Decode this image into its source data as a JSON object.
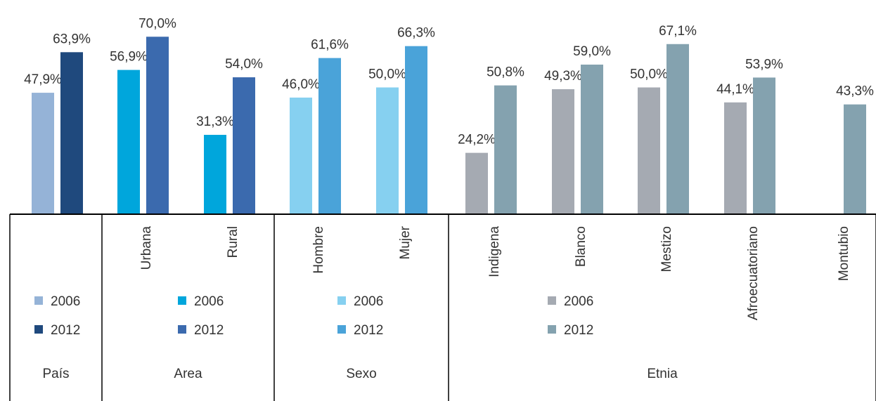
{
  "chart_data": {
    "type": "bar",
    "ylim": [
      0,
      100
    ],
    "grid": false,
    "groups": [
      {
        "name": "País",
        "colors": {
          "2006": "#95b3d7",
          "2012": "#1f497d"
        },
        "legend": [
          "2006",
          "2012"
        ],
        "categories": [
          {
            "label": "",
            "values": {
              "2006": 47.9,
              "2012": 63.9
            },
            "value_labels": {
              "2006": "47,9%",
              "2012": "63,9%"
            }
          }
        ]
      },
      {
        "name": "Area",
        "colors": {
          "2006": "#00a6dc",
          "2012": "#3b6aae"
        },
        "legend": [
          "2006",
          "2012"
        ],
        "categories": [
          {
            "label": "Urbana",
            "values": {
              "2006": 56.9,
              "2012": 70.0
            },
            "value_labels": {
              "2006": "56,9%",
              "2012": "70,0%"
            }
          },
          {
            "label": "Rural",
            "values": {
              "2006": 31.3,
              "2012": 54.0
            },
            "value_labels": {
              "2006": "31,3%",
              "2012": "54,0%"
            }
          }
        ]
      },
      {
        "name": "Sexo",
        "colors": {
          "2006": "#86d0f0",
          "2012": "#4aa3d9"
        },
        "legend": [
          "2006",
          "2012"
        ],
        "categories": [
          {
            "label": "Hombre",
            "values": {
              "2006": 46.0,
              "2012": 61.6
            },
            "value_labels": {
              "2006": "46,0%",
              "2012": "61,6%"
            }
          },
          {
            "label": "Mujer",
            "values": {
              "2006": 50.0,
              "2012": 66.3
            },
            "value_labels": {
              "2006": "50,0%",
              "2012": "66,3%"
            }
          }
        ]
      },
      {
        "name": "Etnia",
        "colors": {
          "2006": "#a5aab2",
          "2012": "#84a2af"
        },
        "legend": [
          "2006",
          "2012"
        ],
        "categories": [
          {
            "label": "Indigena",
            "values": {
              "2006": 24.2,
              "2012": 50.8
            },
            "value_labels": {
              "2006": "24,2%",
              "2012": "50,8%"
            }
          },
          {
            "label": "Blanco",
            "values": {
              "2006": 49.3,
              "2012": 59.0
            },
            "value_labels": {
              "2006": "49,3%",
              "2012": "59,0%"
            }
          },
          {
            "label": "Mestizo",
            "values": {
              "2006": 50.0,
              "2012": 67.1
            },
            "value_labels": {
              "2006": "50,0%",
              "2012": "67,1%"
            }
          },
          {
            "label": "Afroecuatoriano",
            "values": {
              "2006": 44.1,
              "2012": 53.9
            },
            "value_labels": {
              "2006": "44,1%",
              "2012": "53,9%"
            }
          },
          {
            "label": "Montubio",
            "values": {
              "2012": 43.3
            },
            "value_labels": {
              "2012": "43,3%"
            }
          }
        ]
      }
    ]
  }
}
